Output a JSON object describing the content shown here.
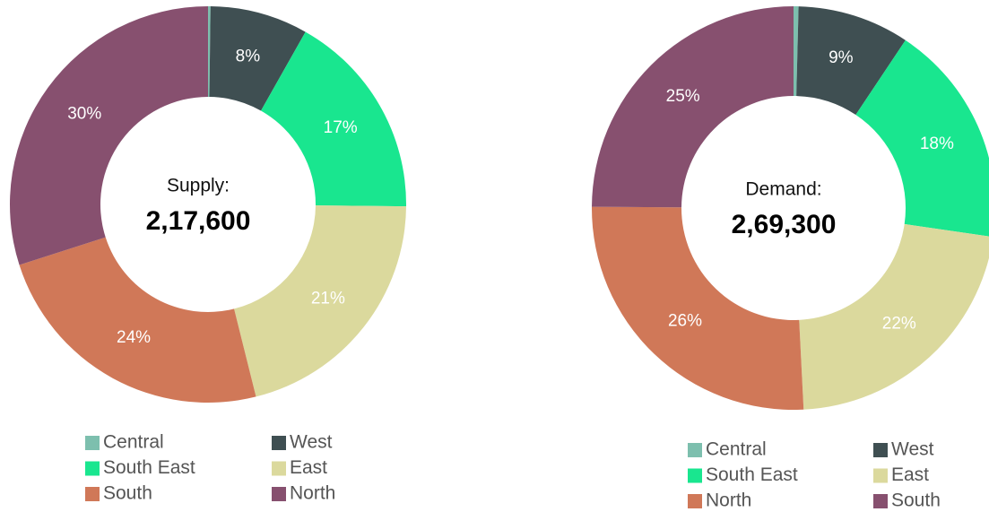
{
  "chart_data": [
    {
      "type": "donut",
      "center_label": "Supply:",
      "center_value": "2,17,600",
      "categories": [
        "Central",
        "West",
        "South East",
        "East",
        "South",
        "North"
      ],
      "values": [
        0.2,
        8,
        17,
        21,
        24,
        30
      ],
      "value_labels": [
        null,
        "8%",
        "17%",
        "21%",
        "24%",
        "30%"
      ],
      "colors": [
        "#7dbfae",
        "#3f4f52",
        "#19e68f",
        "#dbd99d",
        "#d07858",
        "#87506f"
      ]
    },
    {
      "type": "donut",
      "center_label": "Demand:",
      "center_value": "2,69,300",
      "categories": [
        "Central",
        "West",
        "South East",
        "East",
        "North",
        "South"
      ],
      "values": [
        0.4,
        9,
        18,
        22,
        26,
        25
      ],
      "value_labels": [
        null,
        "9%",
        "18%",
        "22%",
        "26%",
        "25%"
      ],
      "colors": [
        "#7dbfae",
        "#3f4f52",
        "#19e68f",
        "#dbd99d",
        "#d07858",
        "#87506f"
      ]
    }
  ]
}
